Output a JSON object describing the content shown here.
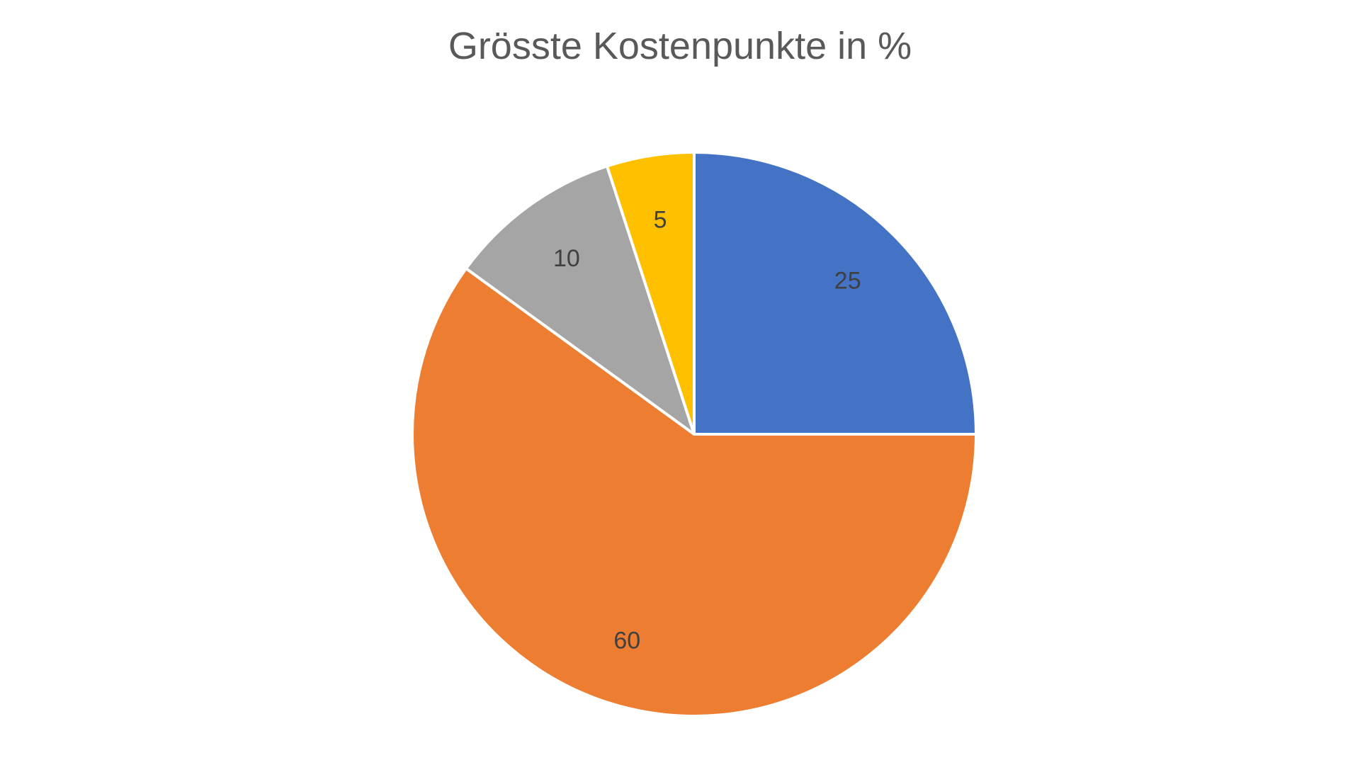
{
  "chart_data": {
    "type": "pie",
    "title": "Grösste Kostenpunkte in %",
    "start_angle_deg": 0,
    "direction": "clockwise",
    "legend": "none",
    "data_labels": true,
    "slices": [
      {
        "value": 25,
        "label": "25",
        "color": "#4472C4"
      },
      {
        "value": 60,
        "label": "60",
        "color": "#ED7D31"
      },
      {
        "value": 10,
        "label": "10",
        "color": "#A5A5A5"
      },
      {
        "value": 5,
        "label": "5",
        "color": "#FFC000"
      }
    ],
    "slice_border_color": "#FFFFFF",
    "label_color": "#404040"
  }
}
